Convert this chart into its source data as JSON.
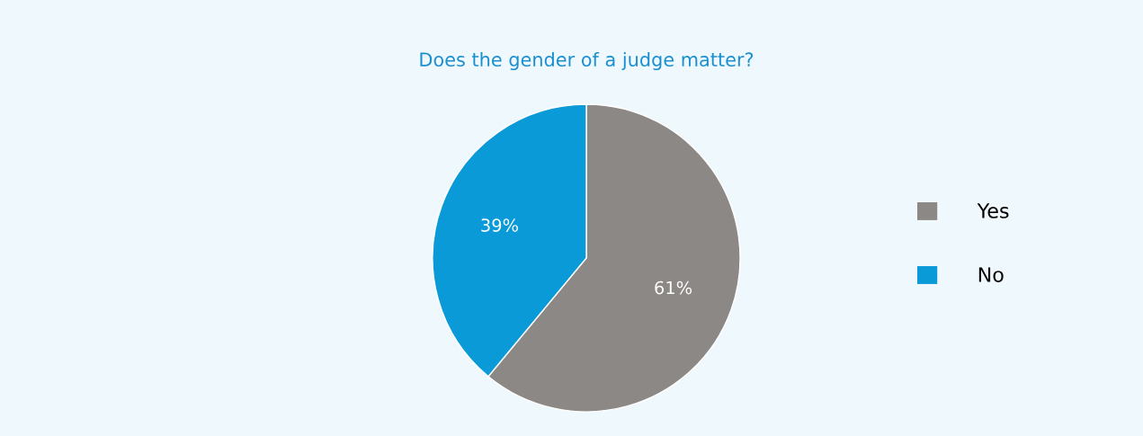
{
  "chart_data": {
    "type": "pie",
    "title": "Does the gender of a judge matter?",
    "categories": [
      "Yes",
      "No"
    ],
    "values": [
      61,
      39
    ],
    "colors": [
      "#8c8886",
      "#0b9ad8"
    ],
    "value_labels": [
      "61%",
      "39%"
    ],
    "legend": "right"
  }
}
